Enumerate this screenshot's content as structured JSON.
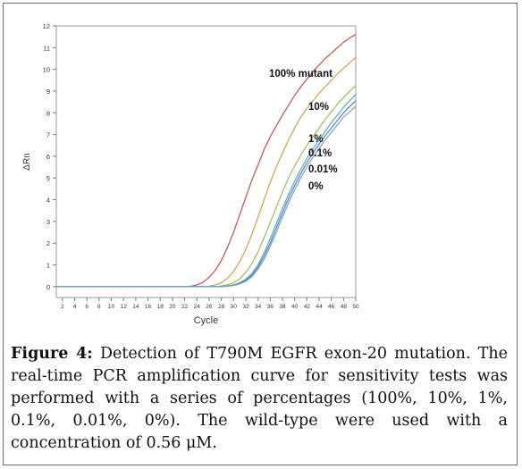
{
  "chart_data": {
    "type": "line",
    "xlabel": "Cycle",
    "ylabel": "ΔRn",
    "xlim": [
      1,
      50
    ],
    "ylim": [
      -0.5,
      12
    ],
    "x_ticks": [
      2,
      4,
      6,
      8,
      10,
      12,
      14,
      16,
      18,
      20,
      22,
      24,
      26,
      28,
      30,
      32,
      34,
      36,
      38,
      40,
      42,
      44,
      46,
      48,
      50
    ],
    "y_ticks": [
      0,
      1,
      2,
      3,
      4,
      5,
      6,
      7,
      8,
      9,
      10,
      11,
      12
    ],
    "grid": false,
    "legend": "inline labels",
    "series": [
      {
        "name": "100% mutant",
        "color": "#c0504d",
        "points": [
          [
            1,
            0
          ],
          [
            22,
            0
          ],
          [
            23,
            0.02
          ],
          [
            24,
            0.08
          ],
          [
            25,
            0.2
          ],
          [
            26,
            0.42
          ],
          [
            27,
            0.75
          ],
          [
            28,
            1.2
          ],
          [
            29,
            1.8
          ],
          [
            30,
            2.5
          ],
          [
            31,
            3.3
          ],
          [
            32,
            4.1
          ],
          [
            33,
            4.9
          ],
          [
            34,
            5.6
          ],
          [
            35,
            6.3
          ],
          [
            36,
            6.9
          ],
          [
            37,
            7.4
          ],
          [
            38,
            7.9
          ],
          [
            39,
            8.35
          ],
          [
            40,
            8.8
          ],
          [
            41,
            9.2
          ],
          [
            42,
            9.55
          ],
          [
            43,
            9.9
          ],
          [
            44,
            10.2
          ],
          [
            45,
            10.5
          ],
          [
            46,
            10.75
          ],
          [
            47,
            11.0
          ],
          [
            48,
            11.25
          ],
          [
            49,
            11.45
          ],
          [
            50,
            11.6
          ]
        ]
      },
      {
        "name": "10%",
        "color": "#c8a83a",
        "points": [
          [
            1,
            0
          ],
          [
            25,
            0
          ],
          [
            26,
            0.02
          ],
          [
            27,
            0.07
          ],
          [
            28,
            0.18
          ],
          [
            29,
            0.38
          ],
          [
            30,
            0.7
          ],
          [
            31,
            1.15
          ],
          [
            32,
            1.7
          ],
          [
            33,
            2.4
          ],
          [
            34,
            3.2
          ],
          [
            35,
            4.0
          ],
          [
            36,
            4.8
          ],
          [
            37,
            5.5
          ],
          [
            38,
            6.15
          ],
          [
            39,
            6.75
          ],
          [
            40,
            7.3
          ],
          [
            41,
            7.8
          ],
          [
            42,
            8.2
          ],
          [
            43,
            8.55
          ],
          [
            44,
            8.9
          ],
          [
            45,
            9.2
          ],
          [
            46,
            9.5
          ],
          [
            47,
            9.8
          ],
          [
            48,
            10.05
          ],
          [
            49,
            10.3
          ],
          [
            50,
            10.55
          ]
        ]
      },
      {
        "name": "1%",
        "color": "#9bbb59",
        "points": [
          [
            1,
            0
          ],
          [
            27,
            0
          ],
          [
            28,
            0.03
          ],
          [
            29,
            0.08
          ],
          [
            30,
            0.18
          ],
          [
            31,
            0.36
          ],
          [
            32,
            0.65
          ],
          [
            33,
            1.05
          ],
          [
            34,
            1.6
          ],
          [
            35,
            2.25
          ],
          [
            36,
            2.95
          ],
          [
            37,
            3.65
          ],
          [
            38,
            4.35
          ],
          [
            39,
            5.0
          ],
          [
            40,
            5.55
          ],
          [
            41,
            6.05
          ],
          [
            42,
            6.5
          ],
          [
            43,
            6.9
          ],
          [
            44,
            7.3
          ],
          [
            45,
            7.7
          ],
          [
            46,
            8.05
          ],
          [
            47,
            8.4
          ],
          [
            48,
            8.7
          ],
          [
            49,
            9.0
          ],
          [
            50,
            9.25
          ]
        ]
      },
      {
        "name": "0.1%",
        "color": "#4bacc6",
        "points": [
          [
            1,
            0
          ],
          [
            28,
            0
          ],
          [
            29,
            0.03
          ],
          [
            30,
            0.08
          ],
          [
            31,
            0.17
          ],
          [
            32,
            0.34
          ],
          [
            33,
            0.6
          ],
          [
            34,
            1.0
          ],
          [
            35,
            1.55
          ],
          [
            36,
            2.2
          ],
          [
            37,
            2.9
          ],
          [
            38,
            3.6
          ],
          [
            39,
            4.25
          ],
          [
            40,
            4.85
          ],
          [
            41,
            5.4
          ],
          [
            42,
            5.9
          ],
          [
            43,
            6.35
          ],
          [
            44,
            6.75
          ],
          [
            45,
            7.15
          ],
          [
            46,
            7.55
          ],
          [
            47,
            7.9
          ],
          [
            48,
            8.25
          ],
          [
            49,
            8.55
          ],
          [
            50,
            8.85
          ]
        ]
      },
      {
        "name": "0.01%",
        "color": "#4f81bd",
        "points": [
          [
            1,
            0
          ],
          [
            28,
            0
          ],
          [
            29,
            0.02
          ],
          [
            30,
            0.06
          ],
          [
            31,
            0.14
          ],
          [
            32,
            0.29
          ],
          [
            33,
            0.52
          ],
          [
            34,
            0.9
          ],
          [
            35,
            1.4
          ],
          [
            36,
            2.0
          ],
          [
            37,
            2.7
          ],
          [
            38,
            3.4
          ],
          [
            39,
            4.05
          ],
          [
            40,
            4.65
          ],
          [
            41,
            5.2
          ],
          [
            42,
            5.7
          ],
          [
            43,
            6.15
          ],
          [
            44,
            6.55
          ],
          [
            45,
            6.95
          ],
          [
            46,
            7.3
          ],
          [
            47,
            7.65
          ],
          [
            48,
            8.0
          ],
          [
            49,
            8.3
          ],
          [
            50,
            8.55
          ]
        ]
      },
      {
        "name": "0%",
        "color": "#7f9fbf",
        "points": [
          [
            1,
            0
          ],
          [
            28,
            0
          ],
          [
            29,
            0.02
          ],
          [
            30,
            0.05
          ],
          [
            31,
            0.12
          ],
          [
            32,
            0.25
          ],
          [
            33,
            0.46
          ],
          [
            34,
            0.8
          ],
          [
            35,
            1.25
          ],
          [
            36,
            1.85
          ],
          [
            37,
            2.5
          ],
          [
            38,
            3.2
          ],
          [
            39,
            3.85
          ],
          [
            40,
            4.45
          ],
          [
            41,
            5.0
          ],
          [
            42,
            5.5
          ],
          [
            43,
            5.95
          ],
          [
            44,
            6.35
          ],
          [
            45,
            6.75
          ],
          [
            46,
            7.1
          ],
          [
            47,
            7.45
          ],
          [
            48,
            7.8
          ],
          [
            49,
            8.05
          ],
          [
            50,
            8.3
          ]
        ]
      }
    ],
    "annotations": [
      "100% mutant",
      "10%",
      "1%",
      "0.1%",
      "0.01%",
      "0%"
    ]
  },
  "caption": {
    "label": "Figure 4:",
    "text": " Detection of T790M EGFR exon-20 mutation. The real-time PCR amplification curve for sensitivity tests was performed with a series of percentages (100%, 10%, 1%, 0.1%, 0.01%, 0%). The wild-type were used with a concentration of 0.56 μM."
  }
}
